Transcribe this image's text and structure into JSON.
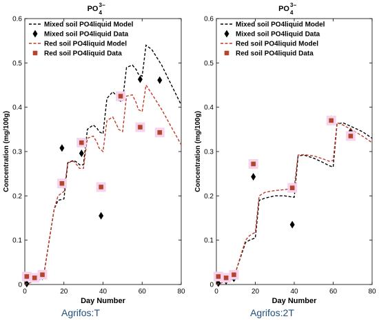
{
  "chart_data": [
    {
      "type": "line",
      "title_base": "PO",
      "title_sup": "3−",
      "title_sub": "4",
      "caption": "Agrifos:T",
      "xlabel": "Day Number",
      "ylabel": "Concentration (mg/100g)",
      "xlim": [
        0,
        80
      ],
      "ylim": [
        0,
        0.6
      ],
      "xticks": [
        "0",
        "20",
        "40",
        "60",
        "80"
      ],
      "yticks": [
        "0",
        "0.1",
        "0.2",
        "0.3",
        "0.4",
        "0.5",
        "0.6"
      ],
      "grid": false,
      "legend_position": "top-left",
      "series": [
        {
          "name": "Mixed soil PO4liquid Model",
          "kind": "line",
          "color": "#000000",
          "x": [
            0,
            8,
            10,
            15,
            17,
            20,
            22,
            25,
            27,
            28,
            30,
            32,
            35,
            37,
            38,
            40,
            42,
            45,
            47,
            48,
            50,
            52,
            55,
            57,
            58,
            60,
            62,
            65,
            70,
            75,
            80
          ],
          "y": [
            0,
            0.012,
            0.03,
            0.17,
            0.19,
            0.193,
            0.275,
            0.28,
            0.275,
            0.27,
            0.27,
            0.35,
            0.36,
            0.352,
            0.345,
            0.34,
            0.42,
            0.435,
            0.425,
            0.415,
            0.415,
            0.49,
            0.495,
            0.485,
            0.475,
            0.47,
            0.54,
            0.53,
            0.495,
            0.45,
            0.405
          ]
        },
        {
          "name": "Mixed soil PO4liquid Data",
          "kind": "marker",
          "marker": "diamond",
          "color": "#000000",
          "x": [
            1,
            5,
            9,
            19,
            29,
            39,
            49,
            59,
            69
          ],
          "y": [
            0.002,
            0.015,
            0.018,
            0.308,
            0.296,
            0.155,
            0.42,
            0.463,
            0.461
          ]
        },
        {
          "name": "Red soil PO4liquid Model",
          "kind": "line",
          "color": "#c0392b",
          "x": [
            0,
            8,
            10,
            15,
            17,
            20,
            22,
            25,
            27,
            28,
            30,
            32,
            35,
            37,
            38,
            40,
            42,
            45,
            47,
            48,
            50,
            52,
            55,
            57,
            58,
            60,
            62,
            65,
            70,
            75,
            80
          ],
          "y": [
            0,
            0.012,
            0.03,
            0.17,
            0.2,
            0.21,
            0.275,
            0.278,
            0.268,
            0.262,
            0.262,
            0.33,
            0.335,
            0.32,
            0.308,
            0.3,
            0.37,
            0.378,
            0.36,
            0.35,
            0.345,
            0.425,
            0.428,
            0.41,
            0.395,
            0.39,
            0.45,
            0.43,
            0.395,
            0.355,
            0.315
          ]
        },
        {
          "name": "Red soil PO4liquid Data",
          "kind": "marker",
          "marker": "square",
          "color": "#b5442c",
          "x": [
            1,
            5,
            9,
            19,
            29,
            39,
            49,
            59,
            69
          ],
          "y": [
            0.018,
            0.015,
            0.022,
            0.228,
            0.32,
            0.22,
            0.425,
            0.355,
            0.343
          ]
        }
      ]
    },
    {
      "type": "line",
      "title_base": "PO",
      "title_sup": "3−",
      "title_sub": "4",
      "caption": "Agrifos:2T",
      "xlabel": "Day Number",
      "ylabel": "Concentration (mg/100g)",
      "xlim": [
        0,
        80
      ],
      "ylim": [
        0,
        0.6
      ],
      "xticks": [
        "0",
        "20",
        "40",
        "60",
        "80"
      ],
      "yticks": [
        "0",
        "0.1",
        "0.2",
        "0.3",
        "0.4",
        "0.5",
        "0.6"
      ],
      "grid": false,
      "legend_position": "top-left",
      "series": [
        {
          "name": "Mixed soil PO4liquid Model",
          "kind": "line",
          "color": "#000000",
          "x": [
            0,
            8,
            10,
            15,
            17,
            20,
            22,
            25,
            30,
            35,
            38,
            40,
            42,
            45,
            50,
            55,
            58,
            60,
            62,
            65,
            70,
            75,
            80
          ],
          "y": [
            0,
            0.012,
            0.03,
            0.095,
            0.1,
            0.105,
            0.19,
            0.195,
            0.2,
            0.2,
            0.198,
            0.197,
            0.29,
            0.292,
            0.285,
            0.275,
            0.268,
            0.265,
            0.362,
            0.365,
            0.355,
            0.345,
            0.33
          ]
        },
        {
          "name": "Mixed soil PO4liquid Data",
          "kind": "marker",
          "marker": "diamond",
          "color": "#000000",
          "x": [
            1,
            5,
            9,
            19,
            39,
            59,
            69
          ],
          "y": [
            0.003,
            0.008,
            0.014,
            0.243,
            0.135,
            0.373,
            0.345
          ]
        },
        {
          "name": "Red soil PO4liquid Model",
          "kind": "line",
          "color": "#c0392b",
          "x": [
            0,
            8,
            10,
            15,
            17,
            20,
            22,
            25,
            30,
            35,
            38,
            40,
            42,
            45,
            50,
            55,
            58,
            60,
            62,
            65,
            70,
            75,
            80
          ],
          "y": [
            0,
            0.012,
            0.03,
            0.1,
            0.11,
            0.118,
            0.2,
            0.208,
            0.212,
            0.214,
            0.216,
            0.22,
            0.292,
            0.293,
            0.29,
            0.283,
            0.278,
            0.28,
            0.365,
            0.36,
            0.348,
            0.335,
            0.32
          ]
        },
        {
          "name": "Red soil PO4liquid Data",
          "kind": "marker",
          "marker": "square",
          "color": "#b5442c",
          "x": [
            1,
            5,
            9,
            19,
            39,
            59,
            69
          ],
          "y": [
            0.018,
            0.015,
            0.022,
            0.272,
            0.218,
            0.37,
            0.335
          ]
        }
      ]
    }
  ]
}
